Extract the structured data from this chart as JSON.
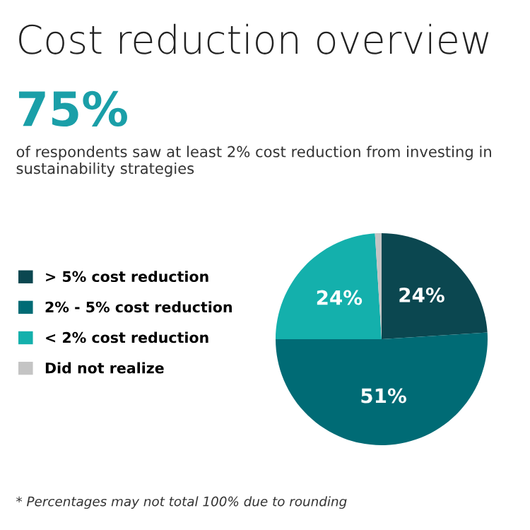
{
  "chart_data": {
    "type": "pie",
    "title": "Cost reduction overview",
    "subtitle": "of respondents saw at least 2% cost reduction from investing in sustainability strategies",
    "annotations": [
      "75%",
      "* Percentages may not total 100% due to rounding"
    ],
    "categories": [
      "> 5% cost reduction",
      "2% - 5% cost reduction",
      "< 2% cost reduction",
      "Did not realize"
    ],
    "values": [
      24,
      51,
      24,
      1
    ],
    "colors": [
      "#0b4750",
      "#006b75",
      "#14b0ac",
      "#c4c4c4"
    ],
    "value_labels": [
      "24%",
      "51%",
      "24%",
      null
    ],
    "legend": "left"
  }
}
